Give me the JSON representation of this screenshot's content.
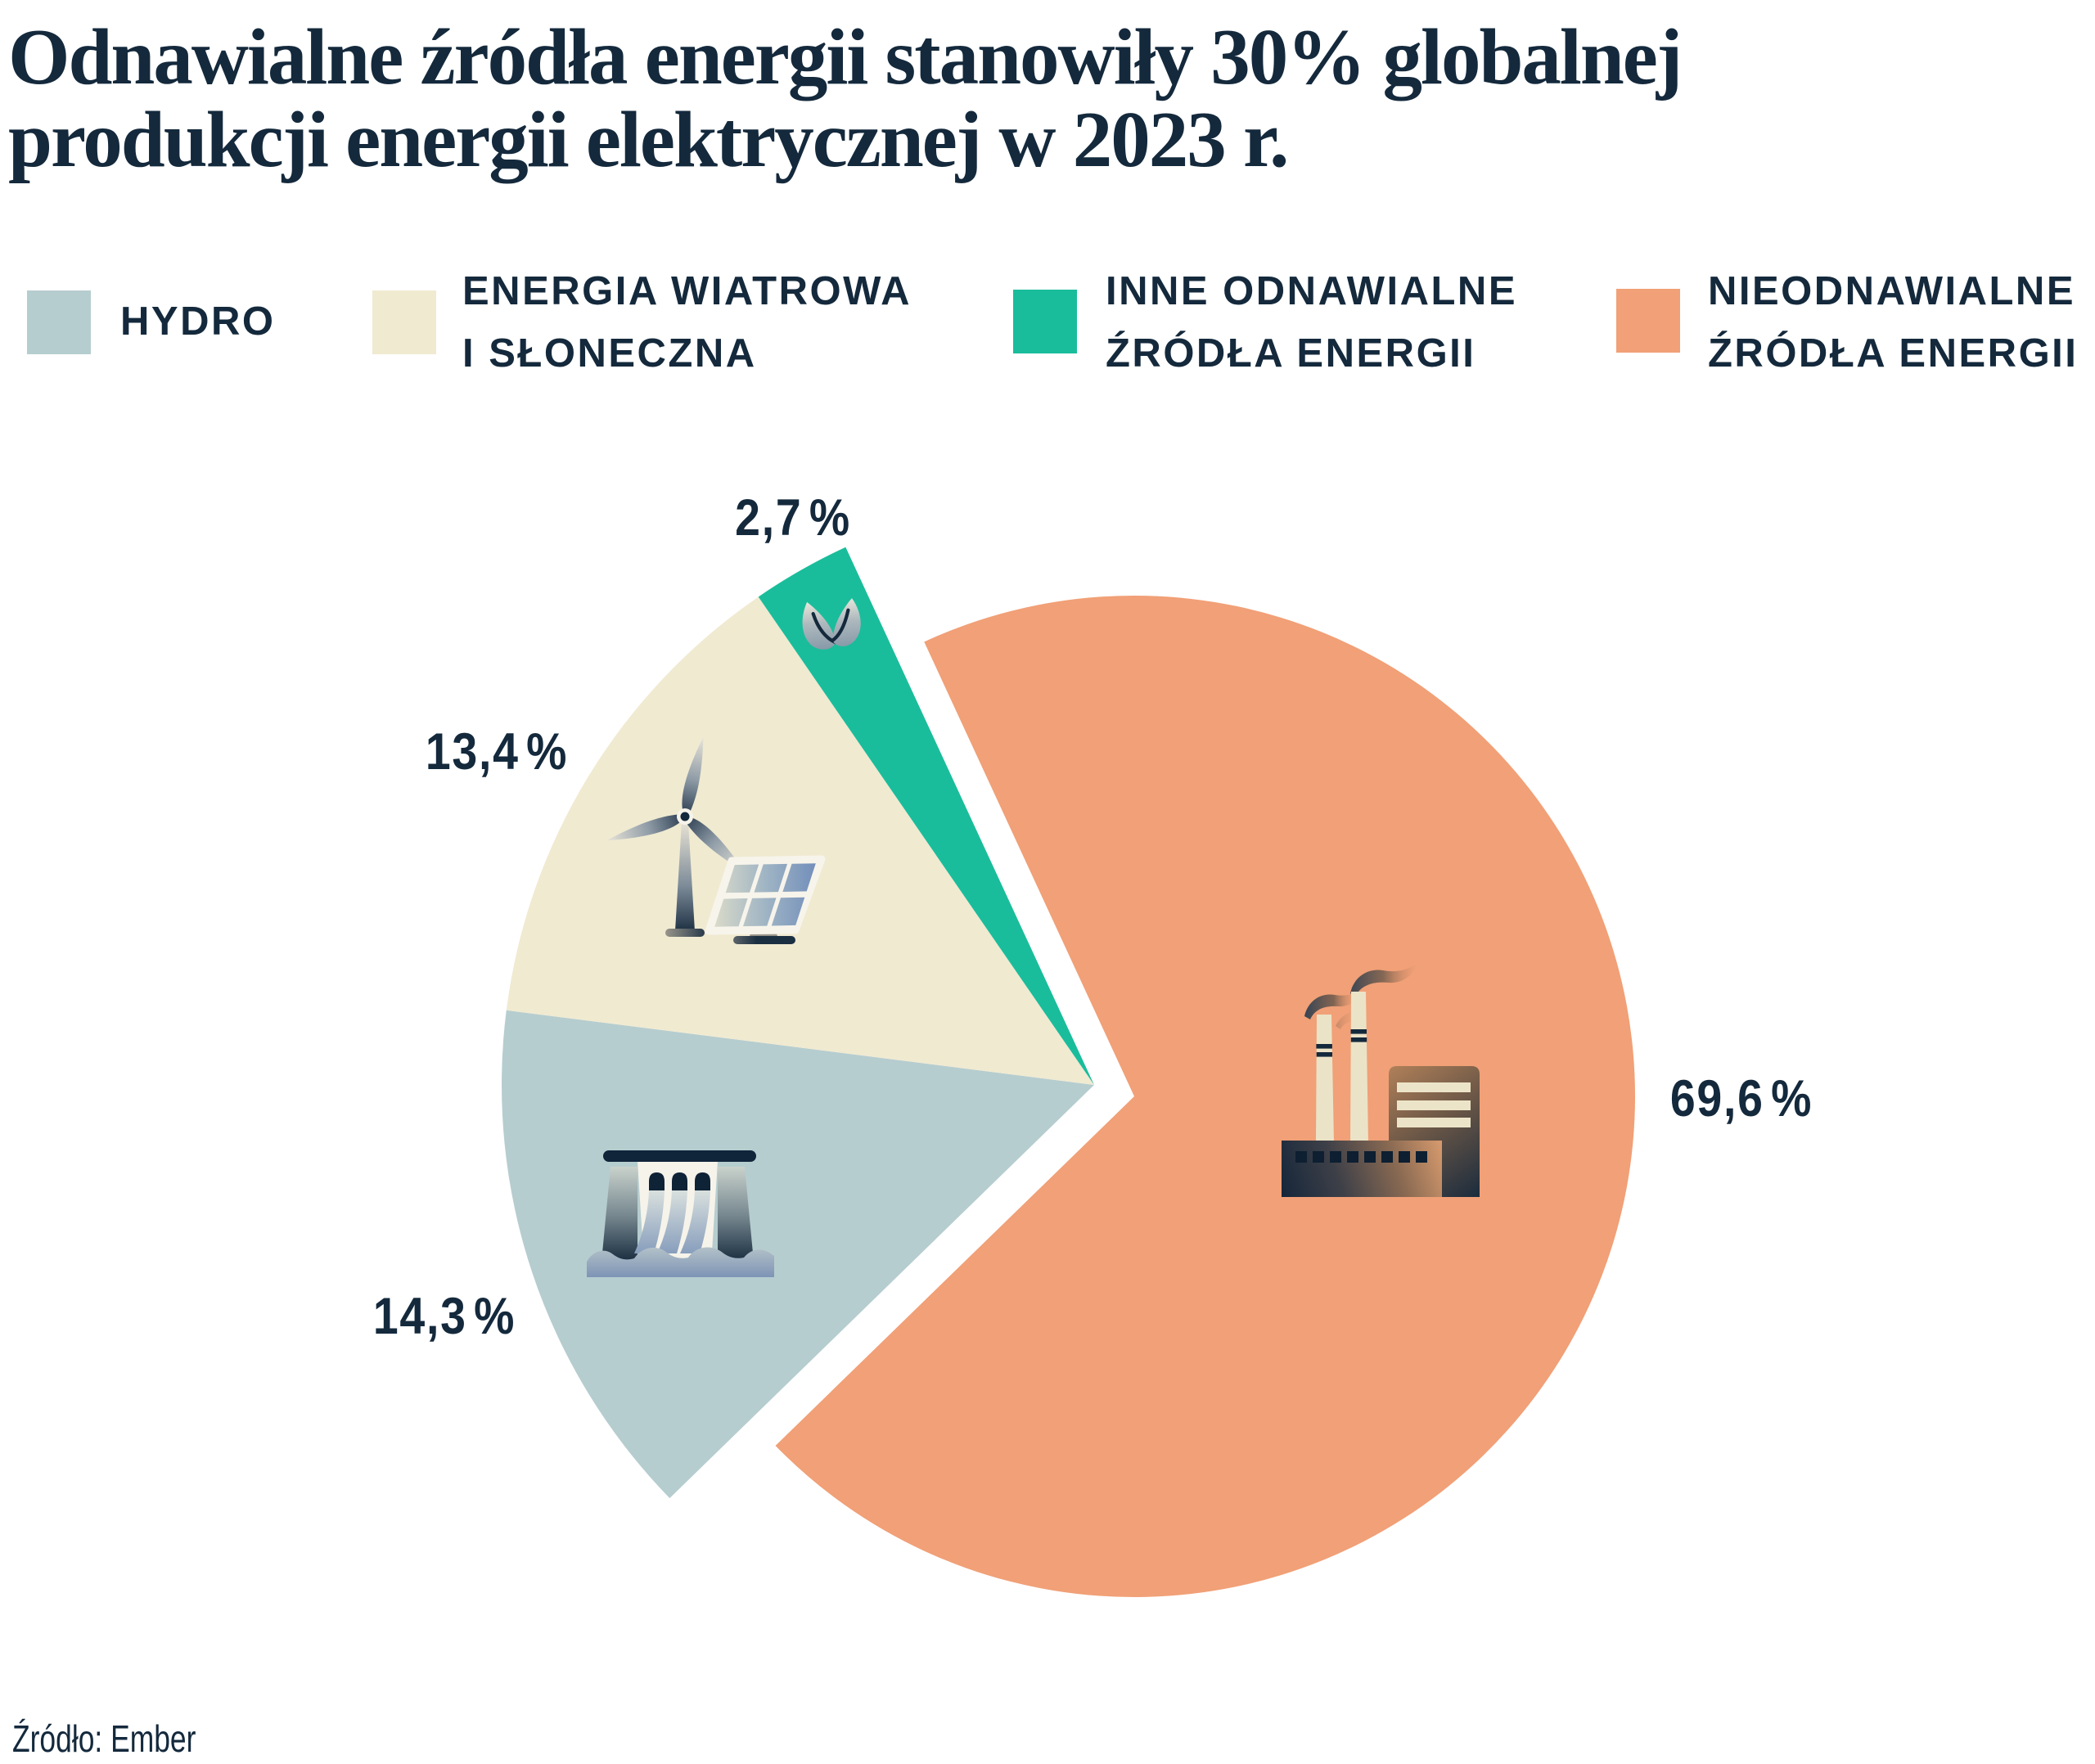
{
  "title": "Odnawialne źródła energii stanowiły 30% globalnej produkcji energii elektrycznej w 2023 r.",
  "source_note": "Źródło: Ember",
  "colors": {
    "background": "#FFFFFF",
    "text": "#14293C",
    "hydro": "#B6CDCF",
    "wind_solar": "#F0EAD1",
    "other_renewables": "#1ABD9B",
    "non_renewables": "#F1A077"
  },
  "legend": {
    "items": [
      {
        "label": "HYDRO",
        "lines": [
          "HYDRO"
        ],
        "color": "#B6CDCF"
      },
      {
        "label": "ENERGIA WIATROWA I SŁONECZNA",
        "lines": [
          "ENERGIA WIATROWA",
          "I SŁONECZNA"
        ],
        "color": "#F0EAD1"
      },
      {
        "label": "INNE ODNAWIALNE ŹRÓDŁA ENERGII",
        "lines": [
          "INNE ODNAWIALNE",
          "ŹRÓDŁA ENERGII"
        ],
        "color": "#1ABD9B"
      },
      {
        "label": "NIEODNAWIALNE ŹRÓDŁA ENERGII",
        "lines": [
          "NIEODNAWIALNE",
          "ŹRÓDŁA ENERGII"
        ],
        "color": "#F1A077"
      }
    ]
  },
  "chart_data": {
    "type": "pie",
    "title": "Odnawialne źródła energii stanowiły 30% globalnej produkcji energii elektrycznej w 2023 r.",
    "unit": "%",
    "slices": [
      {
        "label": "NIEODNAWIALNE ŹRÓDŁA ENERGII",
        "value": 69.6,
        "display": "69,6 %",
        "color": "#F1A077",
        "exploded": true,
        "icon": "factory"
      },
      {
        "label": "HYDRO",
        "value": 14.3,
        "display": "14,3 %",
        "color": "#B6CDCF",
        "exploded": false,
        "icon": "dam"
      },
      {
        "label": "ENERGIA WIATROWA I SŁONECZNA",
        "value": 13.4,
        "display": "13,4 %",
        "color": "#F0EAD1",
        "exploded": false,
        "icon": "wind-turbine-solar-panel"
      },
      {
        "label": "INNE ODNAWIALNE ŹRÓDŁA ENERGII",
        "value": 2.7,
        "display": "2,7 %",
        "color": "#1ABD9B",
        "exploded": false,
        "icon": "leaf"
      }
    ],
    "layout": {
      "start_angle_deg": -24.8,
      "clockwise": true,
      "base_center": [
        1337,
        1326
      ],
      "base_radius": 724,
      "exploded_center": [
        1386,
        1340
      ],
      "exploded_radius": 612,
      "legend_position": "top",
      "labels_outside": true,
      "source_position": "bottom-left"
    }
  }
}
